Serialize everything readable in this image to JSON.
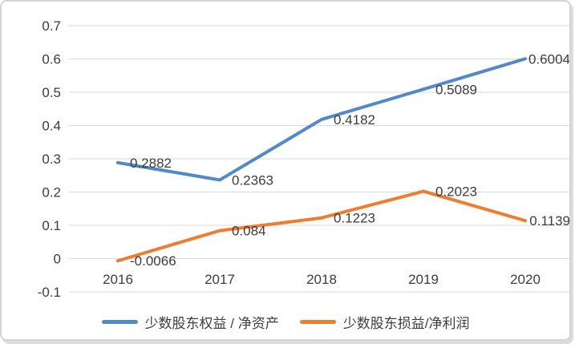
{
  "card": {
    "background": "#ffffff",
    "border_color": "#d4d4d4",
    "shadow_color": "#dcdcdc"
  },
  "chart_data": {
    "type": "line",
    "title": "",
    "xlabel": "",
    "ylabel": "",
    "categories": [
      "2016",
      "2017",
      "2018",
      "2019",
      "2020"
    ],
    "series": [
      {
        "name": "少数股东权益 / 净资产",
        "color": "#5189C9",
        "values": [
          0.2882,
          0.2363,
          0.4182,
          0.5089,
          0.6004
        ],
        "point_labels": [
          "0.2882",
          "0.2363",
          "0.4182",
          "0.5089",
          "0.6004"
        ]
      },
      {
        "name": "少数股东损益/净利润",
        "color": "#ED7D31",
        "values": [
          -0.0066,
          0.084,
          0.1223,
          0.2023,
          0.1139
        ],
        "point_labels": [
          "-0.0066",
          "0.084",
          "0.1223",
          "0.2023",
          "0.1139"
        ]
      }
    ],
    "y_axis": {
      "min": -0.1,
      "max": 0.7,
      "step": 0.1,
      "tick_labels": [
        "0.7",
        "0.6",
        "0.5",
        "0.4",
        "0.3",
        "0.2",
        "0.1",
        "0",
        "-0.1"
      ]
    },
    "grid": true,
    "gridline_color": "#d9d9d9",
    "text_color": "#3d3d3d",
    "data_labels_visible": true,
    "legend_position": "bottom"
  }
}
